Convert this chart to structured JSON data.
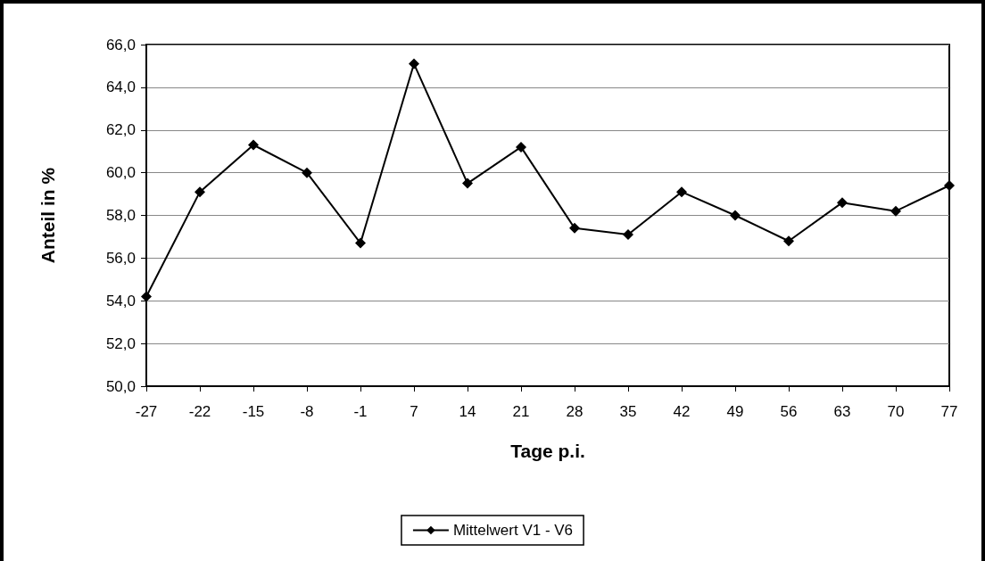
{
  "chart_data": {
    "type": "line",
    "xlabel": "Tage p.i.",
    "ylabel": "Anteil in %",
    "categories": [
      "-27",
      "-22",
      "-15",
      "-8",
      "-1",
      "7",
      "14",
      "21",
      "28",
      "35",
      "42",
      "49",
      "56",
      "63",
      "70",
      "77"
    ],
    "series": [
      {
        "name": "Mittelwert V1 - V6",
        "color": "#000000",
        "values": [
          54.2,
          59.1,
          61.3,
          60.0,
          56.7,
          65.1,
          59.5,
          61.2,
          57.4,
          57.1,
          59.1,
          58.0,
          56.8,
          58.6,
          58.2,
          59.4
        ]
      }
    ],
    "ylim": [
      50,
      66
    ],
    "yticks": [
      {
        "value": 50,
        "label": "50,0"
      },
      {
        "value": 52,
        "label": "52,0"
      },
      {
        "value": 54,
        "label": "54,0"
      },
      {
        "value": 56,
        "label": "56,0"
      },
      {
        "value": 58,
        "label": "58,0"
      },
      {
        "value": 60,
        "label": "60,0"
      },
      {
        "value": 62,
        "label": "62,0"
      },
      {
        "value": 64,
        "label": "64,0"
      },
      {
        "value": 66,
        "label": "66,0"
      }
    ],
    "grid": "y",
    "legend": "bottom",
    "marker": "diamond",
    "line_style": "solid"
  }
}
